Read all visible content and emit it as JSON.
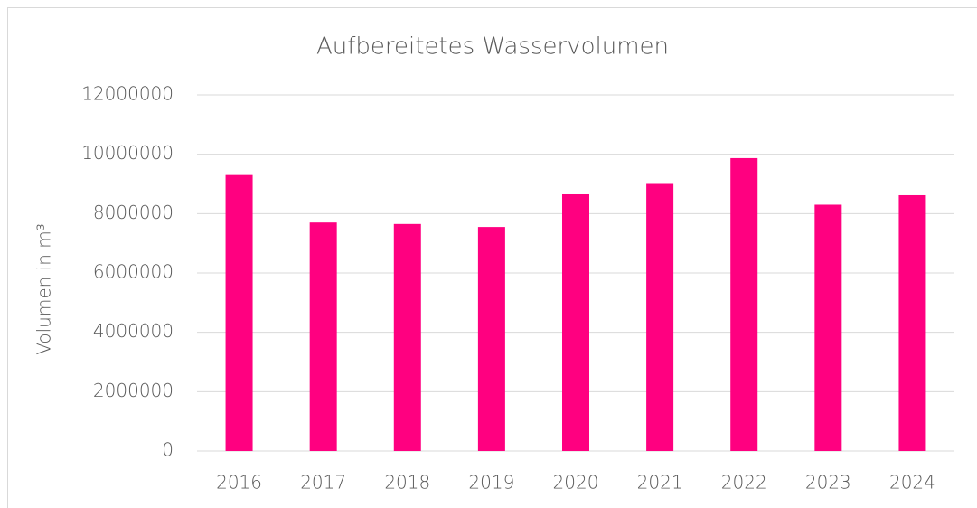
{
  "chart_data": {
    "type": "bar",
    "title": "Aufbereitetes Wasservolumen",
    "y_label": "Volumen in m³",
    "categories": [
      "2016",
      "2017",
      "2018",
      "2019",
      "2020",
      "2021",
      "2022",
      "2023",
      "2024"
    ],
    "values": [
      9300000,
      7700000,
      7650000,
      7550000,
      8650000,
      9000000,
      9870000,
      8300000,
      8620000
    ],
    "color": "#ff0080",
    "ylim": [
      0,
      12000000
    ],
    "yticks": [
      0,
      2000000,
      4000000,
      6000000,
      8000000,
      10000000,
      12000000
    ],
    "grid": true
  }
}
